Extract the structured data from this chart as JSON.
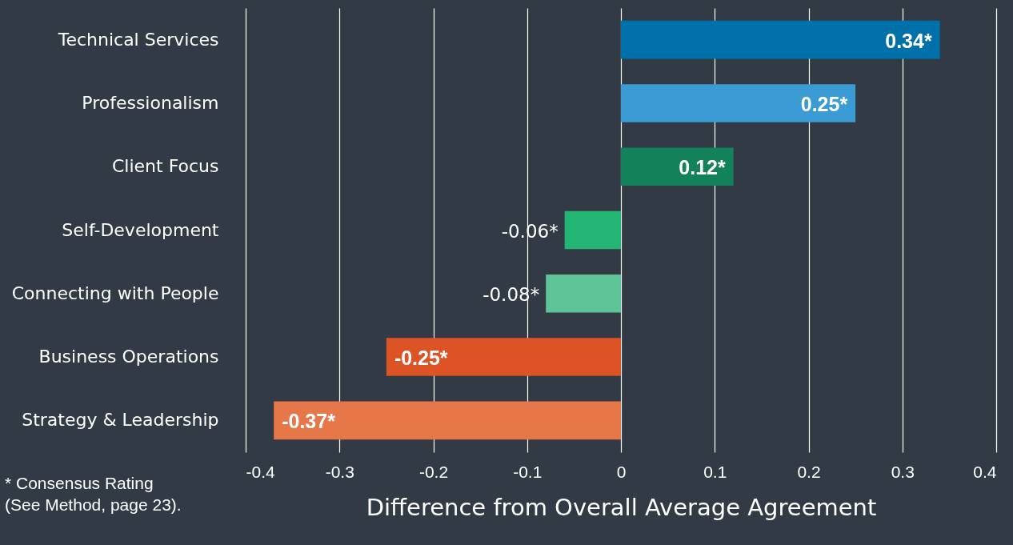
{
  "chart_data": {
    "type": "bar",
    "orientation": "horizontal",
    "xlabel": "Difference from Overall Average Agreement",
    "categories": [
      "Technical Services",
      "Professionalism",
      "Client Focus",
      "Self-Development",
      "Connecting with People",
      "Business Operations",
      "Strategy & Leadership"
    ],
    "values": [
      0.34,
      0.25,
      0.12,
      -0.06,
      -0.08,
      -0.25,
      -0.37
    ],
    "value_labels": [
      "0.34*",
      "0.25*",
      "0.12*",
      "-0.06*",
      "-0.08*",
      "-0.25*",
      "-0.37*"
    ],
    "colors": [
      "#0070a8",
      "#3a9bd5",
      "#13825a",
      "#22b573",
      "#5cc497",
      "#dc5426",
      "#e57748"
    ],
    "xlim": [
      -0.4,
      0.4
    ],
    "xticks": [
      -0.4,
      -0.3,
      -0.2,
      -0.1,
      0,
      0.1,
      0.2,
      0.3,
      0.4
    ],
    "grid": "x",
    "annotations": [
      "* Consensus Rating\n(See Method, page 23)."
    ]
  }
}
